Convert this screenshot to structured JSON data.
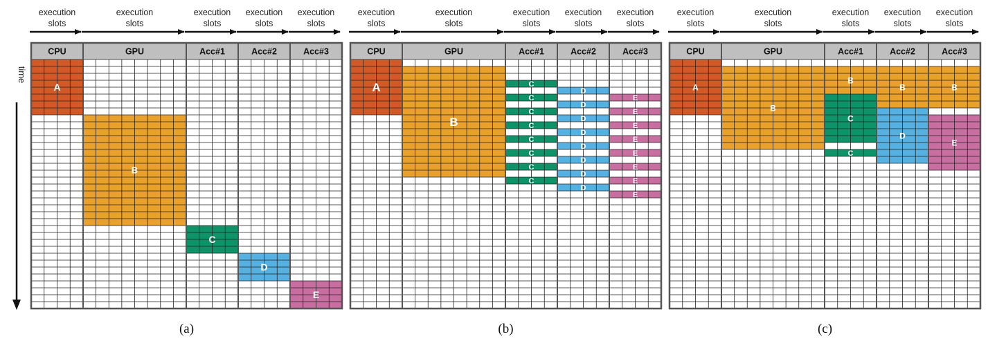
{
  "figure": {
    "slot_label_line1": "execution",
    "slot_label_line2": "slots",
    "time_label": "time",
    "rows": 36,
    "units": [
      "CPU",
      "GPU",
      "Acc#1",
      "Acc#2",
      "Acc#3"
    ],
    "unit_slots": [
      4,
      8,
      4,
      4,
      4
    ],
    "colors": {
      "A": "#d35a27",
      "B": "#e9a12c",
      "C": "#0e9268",
      "D": "#55b1e1",
      "E": "#c86ea0",
      "header": "#bfbfbf",
      "grid": "#222222",
      "border": "#555555"
    }
  },
  "panels": [
    {
      "caption": "(a)",
      "tasks": [
        {
          "label": "A",
          "unit": 0,
          "start": 0,
          "end": 8,
          "label_row": 4,
          "label_size": 14
        },
        {
          "label": "B",
          "unit": 1,
          "start": 8,
          "end": 24,
          "label_row": 16,
          "label_size": 13
        },
        {
          "label": "C",
          "unit": 2,
          "start": 24,
          "end": 28,
          "label_row": 26,
          "label_size": 14
        },
        {
          "label": "D",
          "unit": 3,
          "start": 28,
          "end": 32,
          "label_row": 30,
          "label_size": 14
        },
        {
          "label": "E",
          "unit": 4,
          "start": 32,
          "end": 36,
          "label_row": 34,
          "label_size": 14
        }
      ]
    },
    {
      "caption": "(b)",
      "tasks": [
        {
          "label": "A",
          "unit": 0,
          "start": 0,
          "end": 8,
          "label_row": 4,
          "label_size": 17
        },
        {
          "label": "B",
          "unit": 1,
          "start": 1,
          "end": 17,
          "label_row": 9,
          "label_size": 17
        },
        {
          "label": "C",
          "unit": 2,
          "start": 3,
          "end": 4,
          "label_row": 3.5,
          "label_size": 11
        },
        {
          "label": "C",
          "unit": 2,
          "start": 5,
          "end": 6,
          "label_row": 5.5,
          "label_size": 11
        },
        {
          "label": "C",
          "unit": 2,
          "start": 7,
          "end": 8,
          "label_row": 7.5,
          "label_size": 11
        },
        {
          "label": "C",
          "unit": 2,
          "start": 9,
          "end": 10,
          "label_row": 9.5,
          "label_size": 11
        },
        {
          "label": "C",
          "unit": 2,
          "start": 11,
          "end": 12,
          "label_row": 11.5,
          "label_size": 11
        },
        {
          "label": "C",
          "unit": 2,
          "start": 13,
          "end": 14,
          "label_row": 13.5,
          "label_size": 11
        },
        {
          "label": "C",
          "unit": 2,
          "start": 15,
          "end": 16,
          "label_row": 15.5,
          "label_size": 11
        },
        {
          "label": "C",
          "unit": 2,
          "start": 17,
          "end": 18,
          "label_row": 17.5,
          "label_size": 11
        },
        {
          "label": "D",
          "unit": 3,
          "start": 4,
          "end": 5,
          "label_row": 4.5,
          "label_size": 11
        },
        {
          "label": "D",
          "unit": 3,
          "start": 6,
          "end": 7,
          "label_row": 6.5,
          "label_size": 11
        },
        {
          "label": "D",
          "unit": 3,
          "start": 8,
          "end": 9,
          "label_row": 8.5,
          "label_size": 11
        },
        {
          "label": "D",
          "unit": 3,
          "start": 10,
          "end": 11,
          "label_row": 10.5,
          "label_size": 11
        },
        {
          "label": "D",
          "unit": 3,
          "start": 12,
          "end": 13,
          "label_row": 12.5,
          "label_size": 11
        },
        {
          "label": "D",
          "unit": 3,
          "start": 14,
          "end": 15,
          "label_row": 14.5,
          "label_size": 11
        },
        {
          "label": "D",
          "unit": 3,
          "start": 16,
          "end": 17,
          "label_row": 16.5,
          "label_size": 11
        },
        {
          "label": "D",
          "unit": 3,
          "start": 18,
          "end": 19,
          "label_row": 18.5,
          "label_size": 11
        },
        {
          "label": "E",
          "unit": 4,
          "start": 5,
          "end": 6,
          "label_row": 5.5,
          "label_size": 11
        },
        {
          "label": "E",
          "unit": 4,
          "start": 7,
          "end": 8,
          "label_row": 7.5,
          "label_size": 11
        },
        {
          "label": "E",
          "unit": 4,
          "start": 9,
          "end": 10,
          "label_row": 9.5,
          "label_size": 11
        },
        {
          "label": "E",
          "unit": 4,
          "start": 11,
          "end": 12,
          "label_row": 11.5,
          "label_size": 11
        },
        {
          "label": "E",
          "unit": 4,
          "start": 13,
          "end": 14,
          "label_row": 13.5,
          "label_size": 11
        },
        {
          "label": "E",
          "unit": 4,
          "start": 15,
          "end": 16,
          "label_row": 15.5,
          "label_size": 11
        },
        {
          "label": "E",
          "unit": 4,
          "start": 17,
          "end": 18,
          "label_row": 17.5,
          "label_size": 11
        },
        {
          "label": "E",
          "unit": 4,
          "start": 19,
          "end": 20,
          "label_row": 19.5,
          "label_size": 11
        }
      ]
    },
    {
      "caption": "(c)",
      "tasks": [
        {
          "label": "A",
          "unit": 0,
          "start": 0,
          "end": 8,
          "label_row": 4,
          "label_size": 12
        },
        {
          "label": "B",
          "unit": 1,
          "start": 1,
          "end": 13,
          "label_row": 7,
          "label_size": 12
        },
        {
          "label": "B",
          "unit": 2,
          "start": 1,
          "end": 5,
          "label_row": 3,
          "label_size": 12
        },
        {
          "label": "C",
          "unit": 2,
          "start": 5,
          "end": 12,
          "label_row": 8.5,
          "label_size": 12
        },
        {
          "label": "C",
          "unit": 2,
          "start": 13,
          "end": 14,
          "label_row": 13.5,
          "label_size": 11
        },
        {
          "label": "B",
          "unit": 3,
          "start": 1,
          "end": 7,
          "label_row": 4,
          "label_size": 12
        },
        {
          "label": "D",
          "unit": 3,
          "start": 7,
          "end": 15,
          "label_row": 11,
          "label_size": 12
        },
        {
          "label": "B",
          "unit": 4,
          "start": 1,
          "end": 7,
          "label_row": 4,
          "label_size": 12
        },
        {
          "label": "E",
          "unit": 4,
          "start": 8,
          "end": 16,
          "label_row": 12,
          "label_size": 12
        }
      ]
    }
  ]
}
